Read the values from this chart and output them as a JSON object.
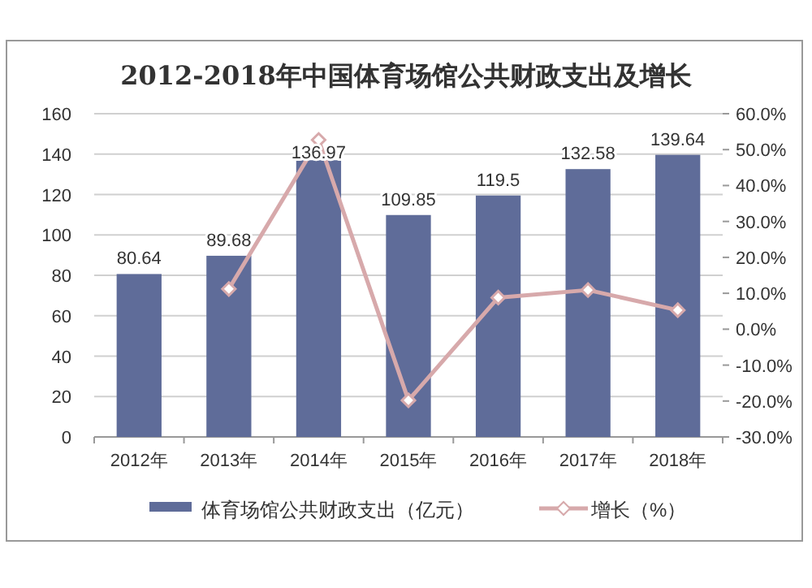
{
  "chart_data": {
    "type": "bar",
    "title": "2012-2018年中国体育场馆公共财政支出及增长",
    "categories": [
      "2012年",
      "2013年",
      "2014年",
      "2015年",
      "2016年",
      "2017年",
      "2018年"
    ],
    "series": [
      {
        "name": "体育场馆公共财政支出（亿元）",
        "color": "#5f6c99",
        "values": [
          80.64,
          89.68,
          136.97,
          109.85,
          119.5,
          132.58,
          139.64
        ],
        "value_labels": [
          "80.64",
          "89.68",
          "136.97",
          "109.85",
          "119.5",
          "132.58",
          "139.64"
        ]
      },
      {
        "name": "增长（%）",
        "type": "line",
        "axis": "y2",
        "color": "#d7a9ab",
        "marker": "diamond",
        "values": [
          null,
          11.2,
          52.7,
          -19.8,
          8.8,
          10.9,
          5.3
        ]
      }
    ],
    "ylim": [
      0,
      160
    ],
    "yticks": [
      0,
      20,
      40,
      60,
      80,
      100,
      120,
      140,
      160
    ],
    "y2lim": [
      -30,
      60
    ],
    "y2ticks": [
      {
        "value": -30,
        "label": "-30.0%"
      },
      {
        "value": -20,
        "label": "-20.0%"
      },
      {
        "value": -10,
        "label": "-10.0%"
      },
      {
        "value": 0,
        "label": "0.0%"
      },
      {
        "value": 10,
        "label": "10.0%"
      },
      {
        "value": 20,
        "label": "20.0%"
      },
      {
        "value": 30,
        "label": "30.0%"
      },
      {
        "value": 40,
        "label": "40.0%"
      },
      {
        "value": 50,
        "label": "50.0%"
      },
      {
        "value": 60,
        "label": "60.0%"
      }
    ],
    "grid": "y",
    "legend": "bottom"
  }
}
